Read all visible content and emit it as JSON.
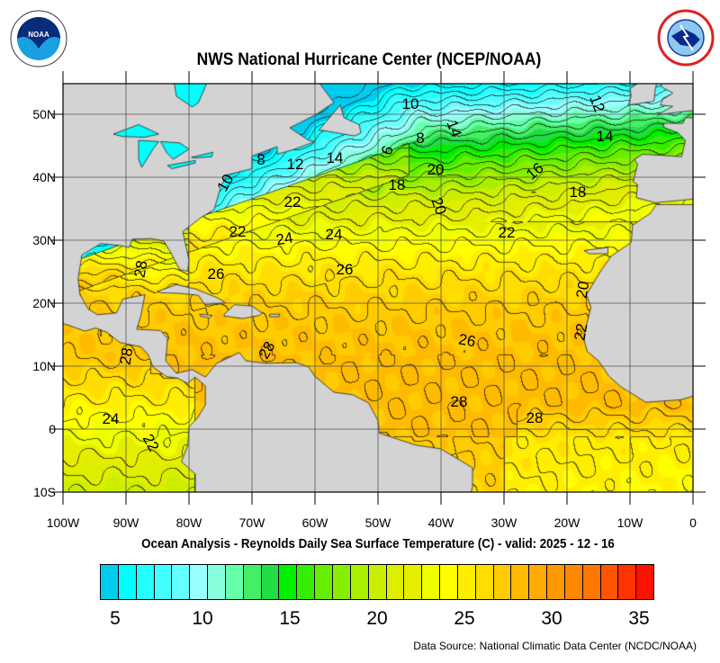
{
  "header": {
    "title": "NWS National Hurricane Center (NCEP/NOAA)",
    "left_logo": "NOAA",
    "right_logo": "NATIONAL WEATHER SERVICE"
  },
  "map": {
    "variable": "Reynolds Daily Sea Surface Temperature",
    "units": "C",
    "lon_range": [
      -100,
      0
    ],
    "lat_range": [
      -10,
      55
    ],
    "grid": true,
    "lon_ticks": [
      "100W",
      "90W",
      "80W",
      "70W",
      "60W",
      "50W",
      "40W",
      "30W",
      "20W",
      "10W",
      "0"
    ],
    "lat_ticks": [
      "50N",
      "40N",
      "30N",
      "20N",
      "10N",
      "0",
      "10S"
    ],
    "land_color": "#d3d3d3",
    "contour_labels": [
      "10",
      "12",
      "8",
      "14",
      "14",
      "6",
      "8",
      "12",
      "14",
      "20",
      "16",
      "10",
      "18",
      "18",
      "22",
      "20",
      "22",
      "24",
      "24",
      "22",
      "28",
      "26",
      "26",
      "20",
      "22",
      "28",
      "28",
      "26",
      "28",
      "28",
      "24",
      "22"
    ]
  },
  "subtitle": "Ocean Analysis - Reynolds Daily Sea Surface Temperature (C) - valid: 2025 - 12 - 16",
  "colorbar": {
    "min": 5,
    "max": 35,
    "labels": [
      "5",
      "10",
      "15",
      "20",
      "25",
      "30",
      "35"
    ],
    "colors": [
      "#00ccee",
      "#00ffff",
      "#22ffff",
      "#44ffff",
      "#66ffff",
      "#99ffff",
      "#88ffdd",
      "#66ffaa",
      "#44ee66",
      "#22dd44",
      "#00ee00",
      "#33ee00",
      "#66ee00",
      "#88ee00",
      "#aaee00",
      "#ccee00",
      "#ddee00",
      "#e6ee00",
      "#eeff00",
      "#ffff00",
      "#ffee00",
      "#ffdd00",
      "#ffcc00",
      "#ffbb00",
      "#ffaa00",
      "#ff9900",
      "#ff8800",
      "#ff7700",
      "#ff5500",
      "#ff3300",
      "#ff1100"
    ]
  },
  "footer": {
    "source": "Data Source: National Climatic Data Center (NCDC/NOAA)"
  }
}
